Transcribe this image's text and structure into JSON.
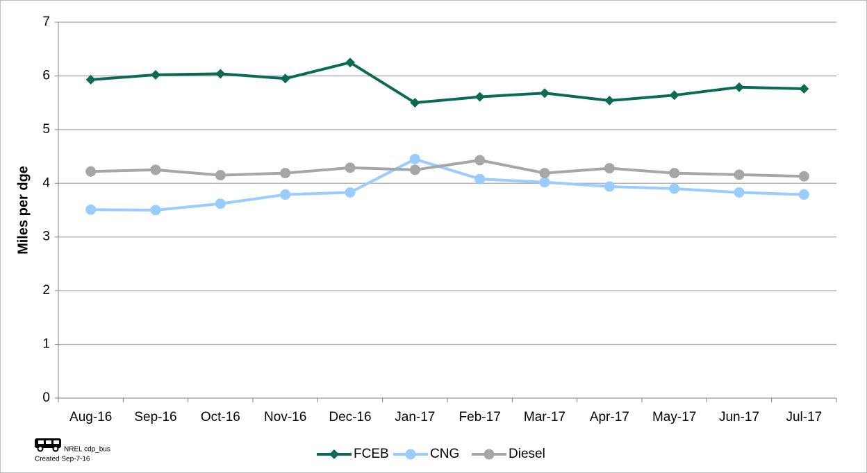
{
  "chart_data": {
    "type": "line",
    "y_label": "Miles per dge",
    "categories": [
      "Aug-16",
      "Sep-16",
      "Oct-16",
      "Nov-16",
      "Dec-16",
      "Jan-17",
      "Feb-17",
      "Mar-17",
      "Apr-17",
      "May-17",
      "Jun-17",
      "Jul-17"
    ],
    "series": [
      {
        "name": "FCEB",
        "color": "#0b6b52",
        "marker": "diamond",
        "values": [
          5.93,
          6.02,
          6.04,
          5.95,
          6.25,
          5.5,
          5.61,
          5.68,
          5.54,
          5.64,
          5.79,
          5.76
        ]
      },
      {
        "name": "CNG",
        "color": "#99ccff",
        "marker": "circle",
        "values": [
          3.51,
          3.5,
          3.62,
          3.79,
          3.83,
          4.45,
          4.08,
          4.02,
          3.94,
          3.9,
          3.83,
          3.79
        ]
      },
      {
        "name": "Diesel",
        "color": "#a6a6a6",
        "marker": "circle",
        "values": [
          4.22,
          4.25,
          4.15,
          4.19,
          4.29,
          4.25,
          4.43,
          4.19,
          4.28,
          4.19,
          4.16,
          4.13
        ]
      }
    ],
    "ylim": [
      0,
      7
    ],
    "yticks": [
      0,
      1,
      2,
      3,
      4,
      5,
      6,
      7
    ],
    "grid": true,
    "legend": "bottom",
    "note": [
      "NREL cdp_bus",
      "Created Sep-7-16"
    ]
  }
}
